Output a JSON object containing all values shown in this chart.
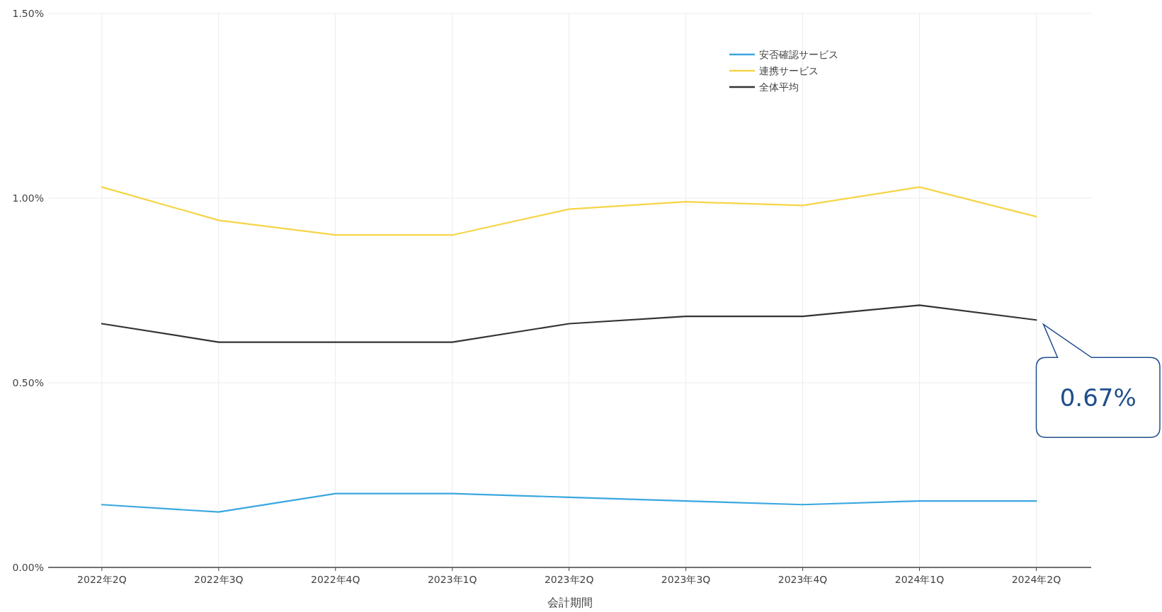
{
  "chart_data": {
    "type": "line",
    "xlabel": "会計期間",
    "categories": [
      "2022年2Q",
      "2022年3Q",
      "2022年4Q",
      "2023年1Q",
      "2023年2Q",
      "2023年3Q",
      "2023年4Q",
      "2024年1Q",
      "2024年2Q"
    ],
    "series": [
      {
        "name": "安否確認サービス",
        "color": "#3aa7e0",
        "values": [
          0.17,
          0.15,
          0.2,
          0.2,
          0.19,
          0.18,
          0.17,
          0.18,
          0.18
        ]
      },
      {
        "name": "連携サービス",
        "color": "#f5d547",
        "values": [
          1.03,
          0.94,
          0.9,
          0.9,
          0.97,
          0.99,
          0.98,
          1.03,
          0.95
        ]
      },
      {
        "name": "全体平均",
        "color": "#333333",
        "values": [
          0.66,
          0.61,
          0.61,
          0.61,
          0.66,
          0.68,
          0.68,
          0.71,
          0.67
        ]
      }
    ],
    "ylim": [
      0,
      1.5
    ],
    "yticks": [
      {
        "value": 0,
        "label": "0.00%"
      },
      {
        "value": 0.5,
        "label": "0.50%"
      },
      {
        "value": 1,
        "label": "1.00%"
      },
      {
        "value": 1.5,
        "label": "1.50%"
      }
    ],
    "grid": true,
    "legend": "top right",
    "marker": "none",
    "line_style": "solid",
    "annotations": [
      {
        "text": "0.67%",
        "x": "2024年2Q",
        "y": 0.67
      }
    ]
  }
}
